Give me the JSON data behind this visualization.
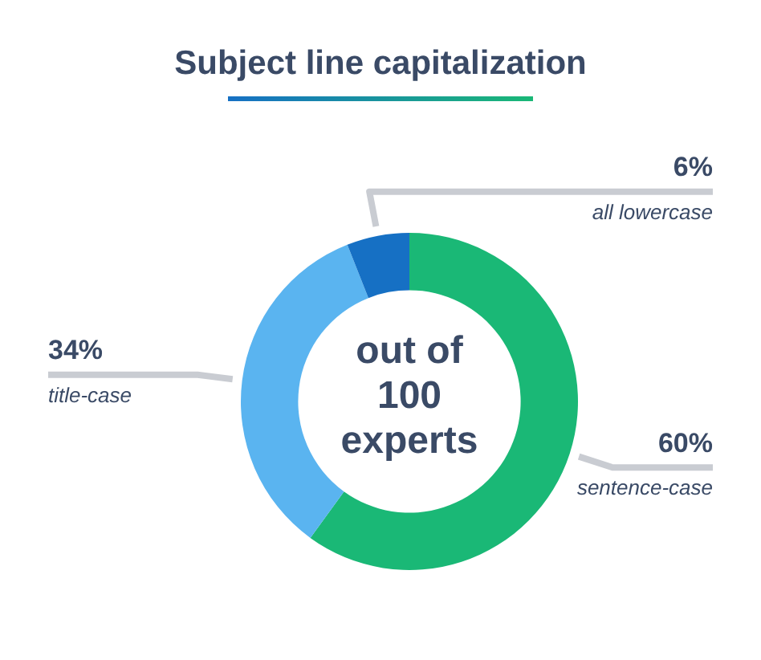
{
  "chart_data": {
    "type": "donut",
    "title": "Subject line capitalization",
    "categories": [
      "sentence-case",
      "title-case",
      "all lowercase"
    ],
    "values": [
      60,
      34,
      6
    ],
    "value_labels": [
      "60%",
      "34%",
      "6%"
    ],
    "colors": [
      "#1ab876",
      "#5ab4f0",
      "#1670c4"
    ],
    "annotations": [
      "out of 100 experts"
    ],
    "legend": false
  }
}
